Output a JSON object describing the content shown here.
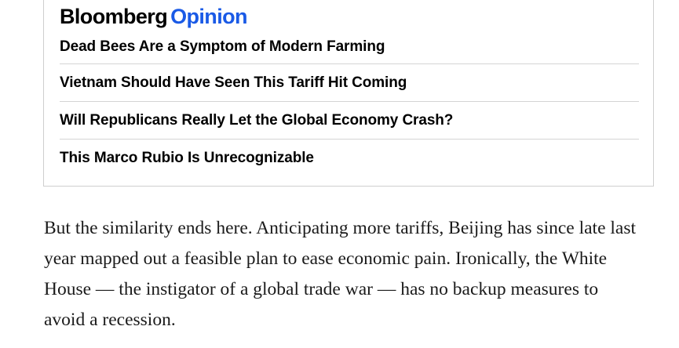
{
  "opinion_box": {
    "brand_name": "Bloomberg",
    "brand_section": "Opinion",
    "headlines": [
      "Dead Bees Are a Symptom of Modern Farming",
      "Vietnam Should Have Seen This Tariff Hit Coming",
      "Will Republicans Really Let the Global Economy Crash?",
      "This Marco Rubio Is Unrecognizable"
    ]
  },
  "article": {
    "paragraph": "But the similarity ends here. Anticipating more tariffs, Beijing has since late last year mapped out a feasible plan to ease economic pain. Ironically, the White House — the instigator of a global trade war — has no backup measures to avoid a recession."
  },
  "colors": {
    "brand_black": "#000000",
    "brand_blue": "#1a5ae6",
    "divider": "#d4d4d4",
    "body_text": "#1a1a1a"
  }
}
